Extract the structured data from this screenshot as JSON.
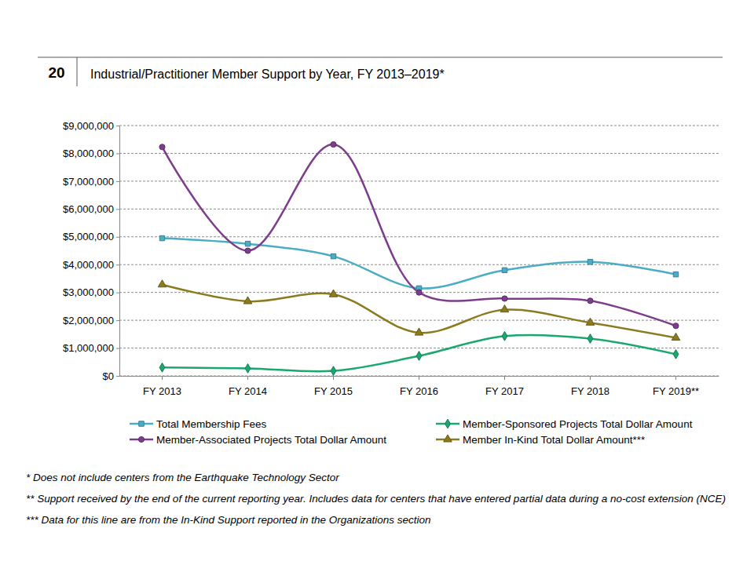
{
  "page_number": "20",
  "chart_data": {
    "type": "line",
    "title": "Industrial/Practitioner Member Support by Year, FY 2013–2019*",
    "categories": [
      "FY 2013",
      "FY 2014",
      "FY 2015",
      "FY 2016",
      "FY 2017",
      "FY 2018",
      "FY 2019**"
    ],
    "series": [
      {
        "name": "Total Membership Fees",
        "color": "#4bacc6",
        "marker": "square",
        "values": [
          4950000,
          4750000,
          4300000,
          3150000,
          3800000,
          4100000,
          3650000
        ]
      },
      {
        "name": "Member-Sponsored Projects Total Dollar Amount",
        "color": "#1aa870",
        "marker": "diamond",
        "values": [
          300000,
          270000,
          180000,
          720000,
          1430000,
          1340000,
          780000
        ]
      },
      {
        "name": "Member-Associated Projects Total Dollar Amount",
        "color": "#7d3c8c",
        "marker": "circle",
        "values": [
          8230000,
          4500000,
          8320000,
          3000000,
          2780000,
          2700000,
          1800000
        ]
      },
      {
        "name": "Member In-Kind Total Dollar Amount***",
        "color": "#8b7a1e",
        "marker": "triangle",
        "values": [
          3280000,
          2680000,
          2930000,
          1550000,
          2380000,
          1910000,
          1370000
        ]
      }
    ],
    "ylim": [
      0,
      9000000
    ],
    "yticks": [
      {
        "value": 0,
        "label": "$0"
      },
      {
        "value": 1000000,
        "label": "$1,000,000"
      },
      {
        "value": 2000000,
        "label": "$2,000,000"
      },
      {
        "value": 3000000,
        "label": "$3,000,000"
      },
      {
        "value": 4000000,
        "label": "$4,000,000"
      },
      {
        "value": 5000000,
        "label": "$5,000,000"
      },
      {
        "value": 6000000,
        "label": "$6,000,000"
      },
      {
        "value": 7000000,
        "label": "$7,000,000"
      },
      {
        "value": 8000000,
        "label": "$8,000,000"
      },
      {
        "value": 9000000,
        "label": "$9,000,000"
      }
    ],
    "grid": true,
    "legend": "bottom",
    "annotations": [
      "* Does not include centers from the Earthquake Technology Sector",
      "** Support received by the end of the current reporting year. Includes data for centers that have entered partial data during a no-cost extension (NCE)",
      "*** Data for this line are from the In-Kind Support reported in the Organizations section"
    ]
  }
}
